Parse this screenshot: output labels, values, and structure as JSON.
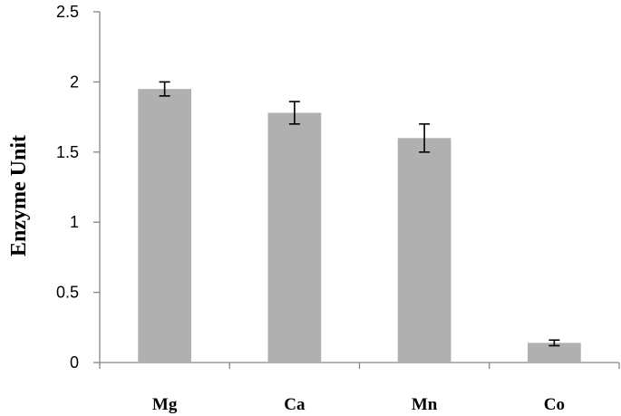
{
  "chart_data": {
    "type": "bar",
    "title": "",
    "xlabel": "",
    "ylabel": "Enzyme Unit",
    "categories": [
      "Mg",
      "Ca",
      "Mn",
      "Co"
    ],
    "values": [
      1.95,
      1.78,
      1.6,
      0.14
    ],
    "errors": [
      0.05,
      0.08,
      0.1,
      0.02
    ],
    "ylim": [
      0,
      2.5
    ],
    "yticks": [
      0,
      0.5,
      1,
      1.5,
      2,
      2.5
    ],
    "ytick_labels": [
      "0",
      "0.5",
      "1",
      "1.5",
      "2",
      "2.5"
    ],
    "grid": false,
    "legend": "none",
    "colors": {
      "bar": "#b0b0b0",
      "axis": "#868686",
      "error_bar": "#000000"
    }
  }
}
